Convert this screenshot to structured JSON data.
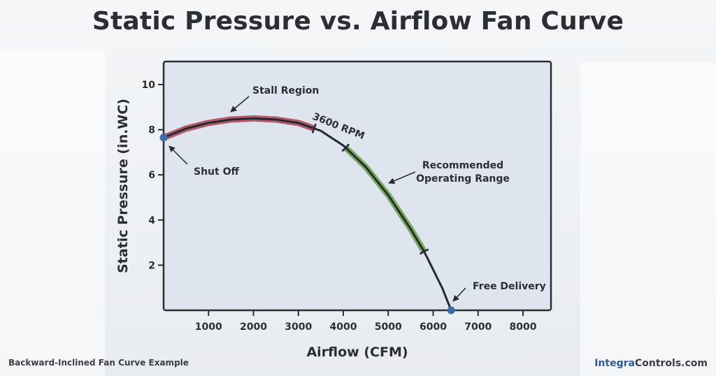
{
  "title": "Static Pressure vs. Airflow Fan Curve",
  "footer": {
    "caption": "Backward-Inclined Fan Curve Example",
    "brand_part1": "Integra",
    "brand_part2": "Controls.com"
  },
  "colors": {
    "curve": "#222a33",
    "stall": "#b45a68",
    "recommended": "#7aaa5c",
    "point": "#3d6ea8",
    "plot_bg": "#dfe5ee"
  },
  "chart_data": {
    "type": "line",
    "title": "Static Pressure vs. Airflow Fan Curve",
    "xlabel": "Airflow (CFM)",
    "ylabel": "Static Pressure (in.WC)",
    "xlim": [
      0,
      8500
    ],
    "ylim": [
      0,
      11
    ],
    "xticks": [
      1000,
      2000,
      3000,
      4000,
      5000,
      6000,
      7000,
      8000
    ],
    "yticks": [
      2,
      4,
      6,
      8,
      10
    ],
    "grid": false,
    "series": [
      {
        "name": "3600 RPM",
        "x": [
          0,
          500,
          1000,
          1500,
          2000,
          2500,
          3000,
          3500,
          4000,
          4500,
          5000,
          5500,
          5800,
          6000,
          6200,
          6400
        ],
        "y": [
          7.65,
          8.05,
          8.3,
          8.45,
          8.5,
          8.45,
          8.3,
          7.95,
          7.3,
          6.35,
          5.1,
          3.6,
          2.6,
          1.8,
          1.0,
          0.0
        ]
      }
    ],
    "regions": [
      {
        "label": "Stall Region",
        "x_start": 0,
        "x_end": 3350,
        "color": "#b45a68"
      },
      {
        "label": "Recommended Operating Range",
        "label_lines": [
          "Recommended",
          "Operating Range"
        ],
        "x_start": 4050,
        "x_end": 5800,
        "color": "#7aaa5c"
      }
    ],
    "points": [
      {
        "label": "Shut Off",
        "x": 0,
        "y": 7.65
      },
      {
        "label": "Free Delivery",
        "x": 6400,
        "y": 0
      }
    ],
    "curve_label": "3600 RPM"
  }
}
